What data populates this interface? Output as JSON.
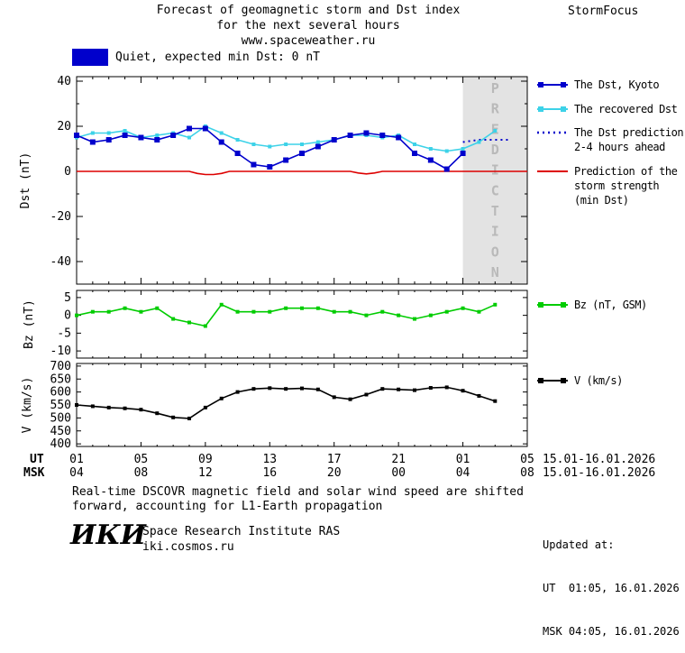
{
  "header": {
    "title_lines": [
      "Forecast of geomagnetic storm and Dst index",
      "for the next several hours",
      "www.spaceweather.ru"
    ],
    "brand": "StormFocus"
  },
  "status": {
    "label": "Quiet, expected min Dst: 0 nT",
    "box_color": "#0000cc"
  },
  "colors": {
    "dst_kyoto": "#0000cc",
    "recovered_dst": "#3dd2e8",
    "dst_prediction": "#0000cc",
    "storm_strength": "#dd0000",
    "bz": "#00cc00",
    "v": "#000000",
    "prediction_band": "#e3e3e3",
    "band_text": "#b9b9b9"
  },
  "chart_data": [
    {
      "type": "line",
      "title": "",
      "ylabel": "Dst (nT)",
      "ylim": [
        -50,
        42
      ],
      "yticks": [
        40,
        20,
        0,
        -20,
        -40
      ],
      "xlim": [
        0,
        28
      ],
      "xticks": [
        0,
        4,
        8,
        12,
        16,
        20,
        24,
        28
      ],
      "prediction_band": {
        "x0": 24,
        "x1": 28,
        "label": "PREDICTION"
      },
      "series": [
        {
          "name": "The Dst, Kyoto",
          "color": "#0000cc",
          "style": "solid",
          "marker": true,
          "marker_size": 6,
          "x": [
            0,
            1,
            2,
            3,
            4,
            5,
            6,
            7,
            8,
            9,
            10,
            11,
            12,
            13,
            14,
            15,
            16,
            17,
            18,
            19,
            20,
            21,
            22,
            23,
            24
          ],
          "values": [
            16,
            13,
            14,
            16,
            15,
            14,
            16,
            19,
            19,
            13,
            8,
            3,
            2,
            5,
            8,
            11,
            14,
            16,
            17,
            16,
            15,
            8,
            5,
            1,
            8
          ]
        },
        {
          "name": "The recovered Dst",
          "color": "#3dd2e8",
          "style": "solid",
          "marker": true,
          "marker_size": 4,
          "x": [
            0,
            1,
            2,
            3,
            4,
            5,
            6,
            7,
            8,
            9,
            10,
            11,
            12,
            13,
            14,
            15,
            16,
            17,
            18,
            19,
            20,
            21,
            22,
            23,
            24,
            25,
            26
          ],
          "values": [
            15,
            17,
            17,
            18,
            15,
            16,
            17,
            15,
            20,
            17,
            14,
            12,
            11,
            12,
            12,
            13,
            14,
            16,
            16,
            15,
            16,
            12,
            10,
            9,
            10,
            13,
            18
          ]
        },
        {
          "name": "The Dst prediction 2-4 hours ahead",
          "color": "#0000cc",
          "style": "dotted",
          "marker": false,
          "x": [
            24,
            25,
            26,
            27
          ],
          "values": [
            13,
            14,
            14,
            14
          ]
        },
        {
          "name": "Prediction of the storm strength (min Dst)",
          "color": "#dd0000",
          "style": "solid",
          "marker": false,
          "x": [
            0,
            7,
            7.5,
            8,
            8.5,
            9,
            9.5,
            17,
            17.5,
            18,
            18.5,
            19,
            28
          ],
          "values": [
            0,
            0,
            -0.9,
            -1.4,
            -1.4,
            -0.9,
            0,
            0,
            -0.7,
            -1.1,
            -0.7,
            0,
            0
          ]
        }
      ]
    },
    {
      "type": "line",
      "title": "",
      "ylabel": "Bz (nT)",
      "ylim": [
        -12,
        7
      ],
      "yticks": [
        5,
        0,
        -5,
        -10
      ],
      "xlim": [
        0,
        28
      ],
      "xticks": [
        0,
        4,
        8,
        12,
        16,
        20,
        24,
        28
      ],
      "series": [
        {
          "name": "Bz (nT, GSM)",
          "color": "#00cc00",
          "style": "solid",
          "marker": true,
          "marker_size": 4,
          "x": [
            0,
            1,
            2,
            3,
            4,
            5,
            6,
            7,
            8,
            9,
            10,
            11,
            12,
            13,
            14,
            15,
            16,
            17,
            18,
            19,
            20,
            21,
            22,
            23,
            24,
            25,
            26
          ],
          "values": [
            0,
            1,
            1,
            2,
            1,
            2,
            -1,
            -2,
            -3,
            3,
            1,
            1,
            1,
            2,
            2,
            2,
            1,
            1,
            0,
            1,
            0,
            -1,
            0,
            1,
            2,
            1,
            3
          ]
        }
      ]
    },
    {
      "type": "line",
      "title": "",
      "ylabel": "V (km/s)",
      "ylim": [
        390,
        710
      ],
      "yticks": [
        700,
        650,
        600,
        550,
        500,
        450,
        400
      ],
      "xlim": [
        0,
        28
      ],
      "xticks": [
        0,
        4,
        8,
        12,
        16,
        20,
        24,
        28
      ],
      "series": [
        {
          "name": "V (km/s)",
          "color": "#000000",
          "style": "solid",
          "marker": true,
          "marker_size": 4,
          "x": [
            0,
            1,
            2,
            3,
            4,
            5,
            6,
            7,
            8,
            9,
            10,
            11,
            12,
            13,
            14,
            15,
            16,
            17,
            18,
            19,
            20,
            21,
            22,
            23,
            24,
            25,
            26
          ],
          "values": [
            550,
            545,
            540,
            537,
            532,
            518,
            502,
            498,
            540,
            575,
            600,
            612,
            615,
            612,
            614,
            610,
            580,
            572,
            590,
            612,
            610,
            607,
            616,
            618,
            605,
            585,
            565
          ]
        }
      ]
    }
  ],
  "legend": {
    "dst": [
      {
        "label": "The Dst, Kyoto",
        "color": "#0000cc",
        "marker": true,
        "style": "solid"
      },
      {
        "label": "The recovered Dst",
        "color": "#3dd2e8",
        "marker": true,
        "style": "solid"
      },
      {
        "label": "The Dst prediction\n2-4 hours ahead",
        "color": "#0000cc",
        "marker": false,
        "style": "dotted"
      },
      {
        "label": "Prediction of the\nstorm strength\n(min Dst)",
        "color": "#dd0000",
        "marker": false,
        "style": "solid"
      }
    ],
    "bz": [
      {
        "label": "Bz (nT, GSM)",
        "color": "#00cc00",
        "marker": true,
        "style": "solid"
      }
    ],
    "v": [
      {
        "label": "V (km/s)",
        "color": "#000000",
        "marker": true,
        "style": "solid"
      }
    ]
  },
  "xaxis": {
    "rows": [
      {
        "name": "UT",
        "ticks": [
          "01",
          "05",
          "09",
          "13",
          "17",
          "21",
          "01",
          "05"
        ],
        "date": "15.01-16.01.2026"
      },
      {
        "name": "MSK",
        "ticks": [
          "04",
          "08",
          "12",
          "16",
          "20",
          "00",
          "04",
          "08"
        ],
        "date": "15.01-16.01.2026"
      }
    ]
  },
  "footer": {
    "note_lines": [
      "Real-time DSCOVR magnetic field and solar wind speed are shifted",
      "forward, accounting for L1-Earth propagation"
    ],
    "updated": {
      "heading": "Updated at:",
      "ut": "UT  01:05, 16.01.2026",
      "msk": "MSK 04:05, 16.01.2026"
    },
    "logo": "ИКИ",
    "institute": "Space Research Institute RAS",
    "site": "iki.cosmos.ru"
  }
}
